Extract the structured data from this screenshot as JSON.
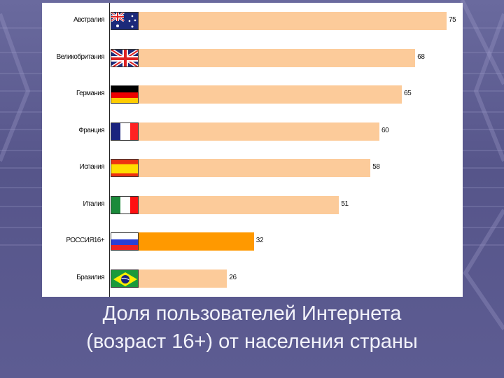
{
  "colors": {
    "background": "#5d5c92",
    "bar": "#fccb9a",
    "bar_highlight": "#ff9900",
    "title_text": "#f2f2fa"
  },
  "title": {
    "line1": "Доля пользователей Интернета",
    "line2": "(возраст 16+) от населения страны"
  },
  "chart_data": {
    "type": "bar",
    "orientation": "horizontal",
    "title": "Доля пользователей Интернета (возраст 16+) от населения страны",
    "xlabel": "",
    "ylabel": "",
    "categories": [
      "Австралия",
      "Великобритания",
      "Германия",
      "Франция",
      "Испания",
      "Италия",
      "РОССИЯ16+",
      "Бразилия"
    ],
    "values": [
      75,
      68,
      65,
      60,
      58,
      51,
      32,
      26
    ],
    "flags": [
      "australia-flag",
      "uk-flag",
      "germany-flag",
      "france-flag",
      "spain-flag",
      "italy-flag",
      "russia-flag",
      "brazil-flag"
    ],
    "highlighted": "РОССИЯ16+",
    "grid": false,
    "legend": "none",
    "xlim": [
      0,
      80
    ]
  },
  "rows": [
    {
      "label": "Австралия",
      "value": "75"
    },
    {
      "label": "Великобритания",
      "value": "68"
    },
    {
      "label": "Германия",
      "value": "65"
    },
    {
      "label": "Франция",
      "value": "60"
    },
    {
      "label": "Испания",
      "value": "58"
    },
    {
      "label": "Италия",
      "value": "51"
    },
    {
      "label": "РОССИЯ16+",
      "value": "32"
    },
    {
      "label": "Бразилия",
      "value": "26"
    }
  ]
}
